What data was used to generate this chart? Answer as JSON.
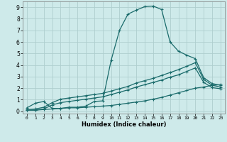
{
  "xlabel": "Humidex (Indice chaleur)",
  "xlim": [
    -0.5,
    23.5
  ],
  "ylim": [
    -0.2,
    9.5
  ],
  "xticks": [
    0,
    1,
    2,
    3,
    4,
    5,
    6,
    7,
    8,
    9,
    10,
    11,
    12,
    13,
    14,
    15,
    16,
    17,
    18,
    19,
    20,
    21,
    22,
    23
  ],
  "yticks": [
    0,
    1,
    2,
    3,
    4,
    5,
    6,
    7,
    8,
    9
  ],
  "bg_color": "#ceeaea",
  "grid_color": "#aecece",
  "line_color": "#1a6b6b",
  "line1_x": [
    0,
    1,
    2,
    3,
    4,
    5,
    6,
    7,
    8,
    9,
    10,
    11,
    12,
    13,
    14,
    15,
    16,
    17,
    18,
    19,
    20,
    21,
    22,
    23
  ],
  "line1_y": [
    0.3,
    0.7,
    0.85,
    0.25,
    0.25,
    0.35,
    0.35,
    0.45,
    0.85,
    0.9,
    4.4,
    7.0,
    8.4,
    8.75,
    9.05,
    9.1,
    8.8,
    6.0,
    5.2,
    4.85,
    4.55,
    2.9,
    2.4,
    2.25
  ],
  "line2_x": [
    0,
    1,
    2,
    3,
    4,
    5,
    6,
    7,
    8,
    9,
    10,
    11,
    12,
    13,
    14,
    15,
    16,
    17,
    18,
    19,
    20,
    21,
    22,
    23
  ],
  "line2_y": [
    0.15,
    0.2,
    0.35,
    0.75,
    1.05,
    1.15,
    1.25,
    1.35,
    1.45,
    1.55,
    1.75,
    1.95,
    2.15,
    2.45,
    2.65,
    2.85,
    3.1,
    3.35,
    3.6,
    3.9,
    4.2,
    2.75,
    2.25,
    2.1
  ],
  "line3_x": [
    0,
    1,
    2,
    3,
    4,
    5,
    6,
    7,
    8,
    9,
    10,
    11,
    12,
    13,
    14,
    15,
    16,
    17,
    18,
    19,
    20,
    21,
    22,
    23
  ],
  "line3_y": [
    0.1,
    0.1,
    0.2,
    0.55,
    0.75,
    0.85,
    0.95,
    1.05,
    1.15,
    1.25,
    1.45,
    1.65,
    1.85,
    2.1,
    2.3,
    2.5,
    2.7,
    2.95,
    3.15,
    3.45,
    3.75,
    2.5,
    2.05,
    1.95
  ],
  "line4_x": [
    0,
    1,
    2,
    3,
    4,
    5,
    6,
    7,
    8,
    9,
    10,
    11,
    12,
    13,
    14,
    15,
    16,
    17,
    18,
    19,
    20,
    21,
    22,
    23
  ],
  "line4_y": [
    0.1,
    0.1,
    0.15,
    0.2,
    0.25,
    0.3,
    0.3,
    0.35,
    0.4,
    0.45,
    0.5,
    0.6,
    0.7,
    0.8,
    0.9,
    1.05,
    1.2,
    1.4,
    1.6,
    1.8,
    2.0,
    2.1,
    2.25,
    2.3
  ]
}
